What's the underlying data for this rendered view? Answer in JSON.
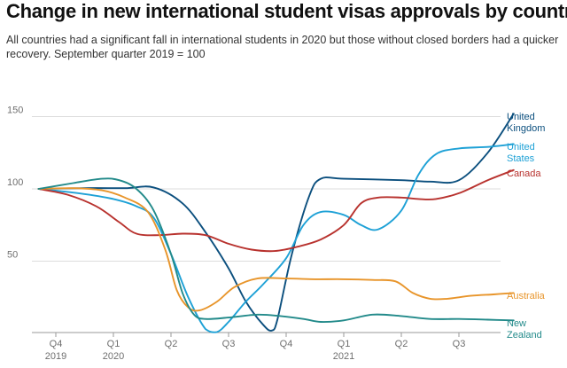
{
  "chart_data": {
    "type": "line",
    "title": "Change in new international student visas approvals by country",
    "subtitle": "All countries had a significant fall in international students in 2020 but those without closed borders had a quicker recovery. September quarter 2019 = 100",
    "xlabel": "",
    "ylabel": "",
    "ylim": [
      0,
      155
    ],
    "yticks": [
      50,
      100,
      150
    ],
    "grid": true,
    "x_ticks": [
      {
        "x": 0,
        "lines": [
          "Q4",
          "2019"
        ]
      },
      {
        "x": 1,
        "lines": [
          "Q1",
          "2020"
        ]
      },
      {
        "x": 2,
        "lines": [
          "Q2"
        ]
      },
      {
        "x": 3,
        "lines": [
          "Q3"
        ]
      },
      {
        "x": 4,
        "lines": [
          "Q4"
        ]
      },
      {
        "x": 5,
        "lines": [
          "Q1",
          "2021"
        ]
      },
      {
        "x": 6,
        "lines": [
          "Q2"
        ]
      },
      {
        "x": 7,
        "lines": [
          "Q3"
        ]
      }
    ],
    "series": [
      {
        "name": "United Kingdom",
        "label_lines": [
          "United",
          "Kingdom"
        ],
        "color": "#0b4f7e",
        "points": [
          [
            -0.3,
            100
          ],
          [
            0.5,
            100.5
          ],
          [
            1.2,
            100.5
          ],
          [
            1.7,
            101
          ],
          [
            2.2,
            90
          ],
          [
            2.6,
            70
          ],
          [
            3.0,
            45
          ],
          [
            3.3,
            22
          ],
          [
            3.6,
            6
          ],
          [
            3.75,
            2
          ],
          [
            3.85,
            10
          ],
          [
            4.1,
            55
          ],
          [
            4.4,
            95
          ],
          [
            4.6,
            107
          ],
          [
            5.0,
            107
          ],
          [
            6.0,
            106
          ],
          [
            6.5,
            105
          ],
          [
            7.0,
            106
          ],
          [
            7.5,
            125
          ],
          [
            7.95,
            152
          ]
        ]
      },
      {
        "name": "United States",
        "label_lines": [
          "United",
          "States"
        ],
        "color": "#1ea1d6",
        "points": [
          [
            -0.3,
            100
          ],
          [
            0.4,
            97
          ],
          [
            1.0,
            93
          ],
          [
            1.4,
            88
          ],
          [
            1.7,
            80
          ],
          [
            2.0,
            55
          ],
          [
            2.3,
            25
          ],
          [
            2.6,
            3
          ],
          [
            2.8,
            1
          ],
          [
            3.0,
            8
          ],
          [
            3.3,
            22
          ],
          [
            3.6,
            34
          ],
          [
            4.0,
            52
          ],
          [
            4.3,
            75
          ],
          [
            4.6,
            84
          ],
          [
            5.0,
            82
          ],
          [
            5.3,
            75
          ],
          [
            5.6,
            72
          ],
          [
            6.0,
            85
          ],
          [
            6.3,
            110
          ],
          [
            6.6,
            124
          ],
          [
            7.0,
            128
          ],
          [
            7.5,
            129
          ],
          [
            7.95,
            131
          ]
        ]
      },
      {
        "name": "Canada",
        "label_lines": [
          "Canada"
        ],
        "color": "#b8322e",
        "points": [
          [
            -0.3,
            100
          ],
          [
            0.2,
            96
          ],
          [
            0.7,
            88
          ],
          [
            1.1,
            77
          ],
          [
            1.4,
            69
          ],
          [
            1.8,
            68
          ],
          [
            2.2,
            69
          ],
          [
            2.6,
            68
          ],
          [
            3.0,
            62
          ],
          [
            3.4,
            58
          ],
          [
            3.8,
            57
          ],
          [
            4.2,
            60
          ],
          [
            4.6,
            65
          ],
          [
            5.0,
            75
          ],
          [
            5.3,
            90
          ],
          [
            5.6,
            94
          ],
          [
            6.0,
            94
          ],
          [
            6.3,
            93
          ],
          [
            6.6,
            93
          ],
          [
            7.0,
            97
          ],
          [
            7.5,
            106
          ],
          [
            7.95,
            113
          ]
        ]
      },
      {
        "name": "Australia",
        "label_lines": [
          "Australia"
        ],
        "color": "#e8952b",
        "points": [
          [
            -0.3,
            100
          ],
          [
            0.3,
            100.5
          ],
          [
            0.8,
            99
          ],
          [
            1.2,
            94
          ],
          [
            1.6,
            84
          ],
          [
            1.9,
            58
          ],
          [
            2.1,
            30
          ],
          [
            2.3,
            18
          ],
          [
            2.5,
            16
          ],
          [
            2.8,
            22
          ],
          [
            3.1,
            32
          ],
          [
            3.5,
            38
          ],
          [
            4.0,
            38
          ],
          [
            4.5,
            37.5
          ],
          [
            5.0,
            37.5
          ],
          [
            5.5,
            37
          ],
          [
            5.9,
            36
          ],
          [
            6.2,
            28
          ],
          [
            6.5,
            24
          ],
          [
            6.8,
            24
          ],
          [
            7.2,
            26
          ],
          [
            7.6,
            27
          ],
          [
            7.95,
            28
          ]
        ]
      },
      {
        "name": "New Zealand",
        "label_lines": [
          "New",
          "Zealand"
        ],
        "color": "#228a8a",
        "points": [
          [
            -0.3,
            100
          ],
          [
            0.3,
            104
          ],
          [
            0.8,
            107
          ],
          [
            1.1,
            106
          ],
          [
            1.4,
            100
          ],
          [
            1.7,
            85
          ],
          [
            2.0,
            55
          ],
          [
            2.2,
            28
          ],
          [
            2.4,
            13
          ],
          [
            2.6,
            10
          ],
          [
            3.0,
            11
          ],
          [
            3.5,
            13
          ],
          [
            3.9,
            12
          ],
          [
            4.3,
            10
          ],
          [
            4.6,
            8
          ],
          [
            5.0,
            9
          ],
          [
            5.5,
            13
          ],
          [
            6.0,
            12
          ],
          [
            6.5,
            10
          ],
          [
            7.0,
            10
          ],
          [
            7.5,
            9.5
          ],
          [
            7.95,
            9
          ]
        ]
      }
    ]
  }
}
